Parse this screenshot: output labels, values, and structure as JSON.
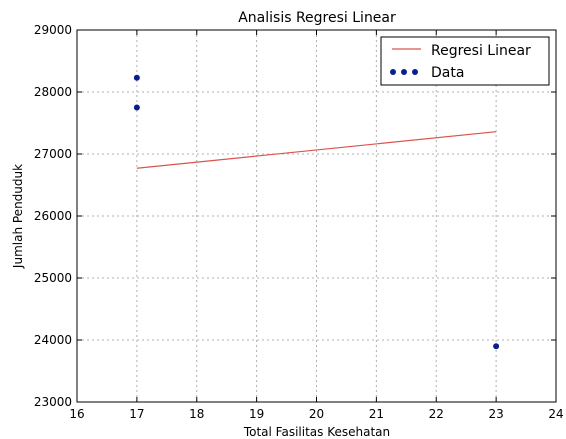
{
  "chart_data": {
    "type": "scatter",
    "title": "Analisis Regresi Linear",
    "xlabel": "Total Fasilitas Kesehatan",
    "ylabel": "Jumlah Penduduk",
    "xlim": [
      16,
      24
    ],
    "ylim": [
      23000,
      29000
    ],
    "x_ticks": [
      16,
      17,
      18,
      19,
      20,
      21,
      22,
      23,
      24
    ],
    "y_ticks": [
      23000,
      24000,
      25000,
      26000,
      27000,
      28000,
      29000
    ],
    "grid": true,
    "legend_position": "top-right",
    "series": [
      {
        "name": "Regresi Linear",
        "kind": "line",
        "color": "#d9534f",
        "x": [
          17,
          23
        ],
        "y": [
          26770,
          27360
        ]
      },
      {
        "name": "Data",
        "kind": "scatter",
        "color": "#0a1f8f",
        "x": [
          17,
          17,
          23
        ],
        "y": [
          28230,
          27750,
          23900
        ]
      }
    ]
  }
}
